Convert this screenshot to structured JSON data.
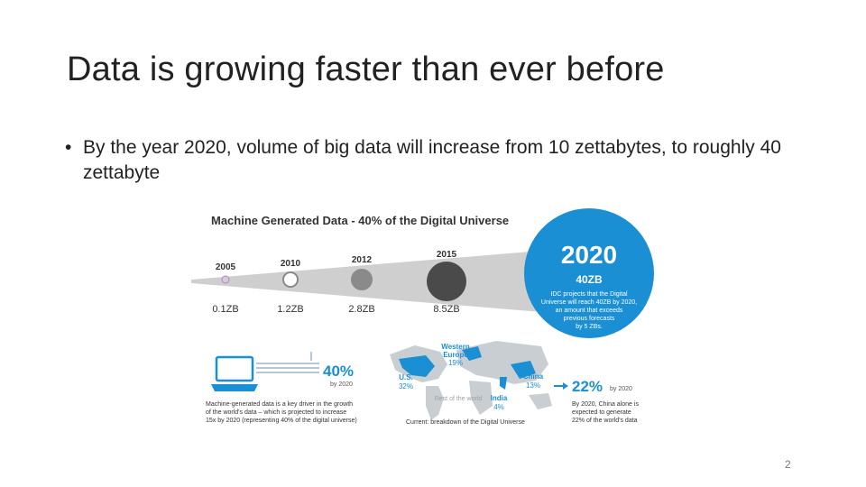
{
  "slide": {
    "title": "Data is growing faster than ever before",
    "bullet": "By the year 2020, volume of big data will increase from 10 zettabytes, to roughly 40 zettabyte",
    "page_number": "2"
  },
  "infographic": {
    "heading": "Machine Generated Data - 40% of the Digital Universe",
    "timeline": [
      {
        "year": "2005",
        "volume": "0.1ZB"
      },
      {
        "year": "2010",
        "volume": "1.2ZB"
      },
      {
        "year": "2012",
        "volume": "2.8ZB"
      },
      {
        "year": "2015",
        "volume": "8.5ZB"
      }
    ],
    "highlight": {
      "year": "2020",
      "volume": "40ZB",
      "note_lines": [
        "IDC projects that the Digital",
        "Universe will reach 40ZB by 2020,",
        "an amount that exceeds",
        "previous forecasts",
        "by 5 ZBs."
      ]
    },
    "machine": {
      "percent": "40%",
      "by": "by 2020",
      "desc_lines": [
        "Machine-generated data is a key driver in the growth",
        "of the world's data – which is projected to increase",
        "15x by 2020 (representing 40% of the digital universe)"
      ]
    },
    "map": {
      "regions": [
        {
          "name_lines": [
            "Western",
            "Europe"
          ],
          "pct": "19%"
        },
        {
          "name_lines": [
            "U.S."
          ],
          "pct": "32%"
        },
        {
          "name_lines": [
            "China"
          ],
          "pct": "13%"
        },
        {
          "name_lines": [
            "Rest of the world"
          ],
          "pct": ""
        },
        {
          "name_lines": [
            "India"
          ],
          "pct": "4%"
        }
      ],
      "caption": "Current: breakdown of the Digital Universe"
    },
    "china": {
      "percent": "22%",
      "by": "by 2020",
      "desc_lines": [
        "By 2020, China alone is",
        "expected to generate",
        "22% of the world's data"
      ]
    },
    "colors": {
      "accent": "#1a8fd4",
      "dark": "#2b2b2b",
      "grey": "#8a8a8a",
      "beam": "#cfcfcf"
    }
  }
}
